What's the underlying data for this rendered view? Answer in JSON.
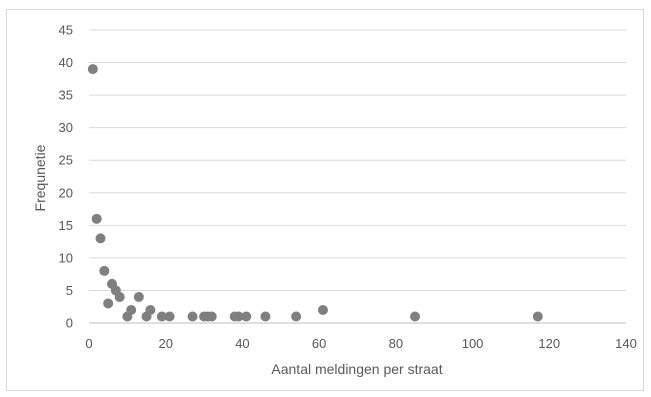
{
  "chart_data": {
    "type": "scatter",
    "title": "",
    "xlabel": "Aantal meldingen per straat",
    "ylabel": "Frequnetie",
    "xlim": [
      0,
      140
    ],
    "ylim": [
      0,
      45
    ],
    "x_ticks": [
      0,
      20,
      40,
      60,
      80,
      100,
      120,
      140
    ],
    "y_ticks": [
      0,
      5,
      10,
      15,
      20,
      25,
      30,
      35,
      40,
      45
    ],
    "grid": "horizontal",
    "legend": "none",
    "marker_color": "#7f7f7f",
    "series": [
      {
        "points": [
          {
            "x": 1,
            "y": 39
          },
          {
            "x": 2,
            "y": 16
          },
          {
            "x": 3,
            "y": 13
          },
          {
            "x": 4,
            "y": 8
          },
          {
            "x": 5,
            "y": 3
          },
          {
            "x": 6,
            "y": 6
          },
          {
            "x": 7,
            "y": 5
          },
          {
            "x": 8,
            "y": 4
          },
          {
            "x": 10,
            "y": 1
          },
          {
            "x": 11,
            "y": 2
          },
          {
            "x": 13,
            "y": 4
          },
          {
            "x": 15,
            "y": 1
          },
          {
            "x": 16,
            "y": 2
          },
          {
            "x": 19,
            "y": 1
          },
          {
            "x": 21,
            "y": 1
          },
          {
            "x": 27,
            "y": 1
          },
          {
            "x": 30,
            "y": 1
          },
          {
            "x": 31,
            "y": 1
          },
          {
            "x": 32,
            "y": 1
          },
          {
            "x": 38,
            "y": 1
          },
          {
            "x": 39,
            "y": 1
          },
          {
            "x": 41,
            "y": 1
          },
          {
            "x": 46,
            "y": 1
          },
          {
            "x": 54,
            "y": 1
          },
          {
            "x": 61,
            "y": 2
          },
          {
            "x": 85,
            "y": 1
          },
          {
            "x": 117,
            "y": 1
          }
        ]
      }
    ]
  }
}
